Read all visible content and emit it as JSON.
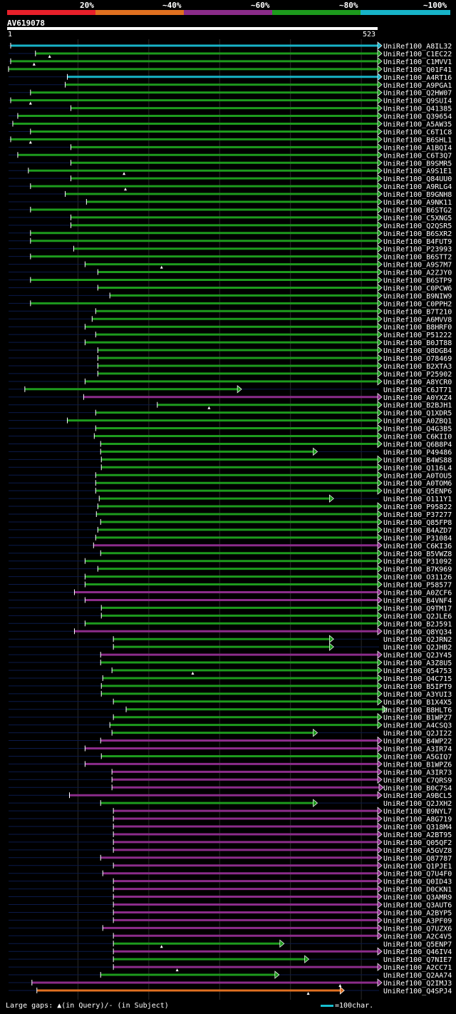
{
  "legend": {
    "labels": [
      "20%",
      "~40%",
      "~60%",
      "~80%",
      "~100%"
    ],
    "colors": [
      "#e8202a",
      "#e07020",
      "#8b2c8a",
      "#1d9a1d",
      "#17b3c8"
    ]
  },
  "query": {
    "id": "AV619078",
    "start": "1",
    "end": "523"
  },
  "footer": {
    "gaps_text": "Large gaps: ▲(in Query)/- (in Subject)",
    "scale_text": "=100char."
  },
  "hits": [
    {
      "label": "UniRef100_A8IL32",
      "color": "cyan",
      "s": 5,
      "e": 523,
      "len": 523,
      "tri": null
    },
    {
      "label": "UniRef100_C1EC22",
      "color": "green",
      "s": 40,
      "e": 523,
      "len": 523,
      "tri": 60
    },
    {
      "label": "UniRef100_C1MVV1",
      "color": "green",
      "s": 5,
      "e": 523,
      "len": 523,
      "tri": 38
    },
    {
      "label": "UniRef100_Q01F41",
      "color": "green",
      "s": 2,
      "e": 523,
      "len": 523,
      "tri": null
    },
    {
      "label": "UniRef100_A4RT16",
      "color": "cyan",
      "s": 85,
      "e": 523,
      "len": 523,
      "tri": null
    },
    {
      "label": "UniRef100_A9PGA1",
      "color": "green",
      "s": 82,
      "e": 523,
      "len": 530,
      "tri": null
    },
    {
      "label": "UniRef100_Q2HW07",
      "color": "green",
      "s": 33,
      "e": 523,
      "len": 530,
      "tri": null
    },
    {
      "label": "UniRef100_Q9SUI4",
      "color": "green",
      "s": 5,
      "e": 523,
      "len": 530,
      "tri": 33
    },
    {
      "label": "UniRef100_Q41385",
      "color": "green",
      "s": 90,
      "e": 523,
      "len": 530,
      "tri": null
    },
    {
      "label": "UniRef100_Q39654",
      "color": "green",
      "s": 15,
      "e": 523,
      "len": 530,
      "tri": null
    },
    {
      "label": "UniRef100_A5AW35",
      "color": "green",
      "s": 8,
      "e": 523,
      "len": 530,
      "tri": null
    },
    {
      "label": "UniRef100_C6T1C8",
      "color": "green",
      "s": 33,
      "e": 523,
      "len": 530,
      "tri": null
    },
    {
      "label": "UniRef100_B6SHL1",
      "color": "green",
      "s": 5,
      "e": 523,
      "len": 523,
      "tri": 33
    },
    {
      "label": "UniRef100_A1BQI4",
      "color": "green",
      "s": 90,
      "e": 523,
      "len": 530,
      "tri": null
    },
    {
      "label": "UniRef100_C6T3Q7",
      "color": "green",
      "s": 15,
      "e": 523,
      "len": 530,
      "tri": null
    },
    {
      "label": "UniRef100_B9SMR5",
      "color": "green",
      "s": 90,
      "e": 523,
      "len": 530,
      "tri": null
    },
    {
      "label": "UniRef100_A9S1E1",
      "color": "green",
      "s": 30,
      "e": 523,
      "len": 530,
      "tri": 165
    },
    {
      "label": "UniRef100_Q84UU0",
      "color": "green",
      "s": 90,
      "e": 523,
      "len": 530,
      "tri": null
    },
    {
      "label": "UniRef100_A9RLG4",
      "color": "green",
      "s": 33,
      "e": 523,
      "len": 530,
      "tri": 167
    },
    {
      "label": "UniRef100_B9GNH8",
      "color": "green",
      "s": 82,
      "e": 523,
      "len": 530,
      "tri": null
    },
    {
      "label": "UniRef100_A9NK11",
      "color": "green",
      "s": 112,
      "e": 523,
      "len": 530,
      "tri": null
    },
    {
      "label": "UniRef100_B6STG2",
      "color": "green",
      "s": 33,
      "e": 523,
      "len": 530,
      "tri": null
    },
    {
      "label": "UniRef100_C5XNG5",
      "color": "green",
      "s": 90,
      "e": 523,
      "len": 530,
      "tri": null
    },
    {
      "label": "UniRef100_Q2QSR5",
      "color": "green",
      "s": 90,
      "e": 523,
      "len": 530,
      "tri": null
    },
    {
      "label": "UniRef100_B6SXR2",
      "color": "green",
      "s": 33,
      "e": 523,
      "len": 530,
      "tri": null
    },
    {
      "label": "UniRef100_B4FUT9",
      "color": "green",
      "s": 33,
      "e": 523,
      "len": 530,
      "tri": null
    },
    {
      "label": "UniRef100_P23993",
      "color": "green",
      "s": 94,
      "e": 523,
      "len": 530,
      "tri": null
    },
    {
      "label": "UniRef100_B6STT2",
      "color": "green",
      "s": 33,
      "e": 523,
      "len": 530,
      "tri": null
    },
    {
      "label": "UniRef100_A9S7M7",
      "color": "green",
      "s": 110,
      "e": 523,
      "len": 530,
      "tri": 218
    },
    {
      "label": "UniRef100_A2ZJY0",
      "color": "green",
      "s": 128,
      "e": 523,
      "len": 530,
      "tri": null
    },
    {
      "label": "UniRef100_B6STP9",
      "color": "green",
      "s": 33,
      "e": 523,
      "len": 530,
      "tri": null
    },
    {
      "label": "UniRef100_C0PCW6",
      "color": "green",
      "s": 128,
      "e": 523,
      "len": 530,
      "tri": null
    },
    {
      "label": "UniRef100_B9NIW9",
      "color": "green",
      "s": 145,
      "e": 523,
      "len": 530,
      "tri": null
    },
    {
      "label": "UniRef100_C0PPH2",
      "color": "green",
      "s": 33,
      "e": 523,
      "len": 530,
      "tri": null
    },
    {
      "label": "UniRef100_B7T210",
      "color": "green",
      "s": 125,
      "e": 523,
      "len": 523,
      "tri": null
    },
    {
      "label": "UniRef100_A6MVV8",
      "color": "green",
      "s": 120,
      "e": 523,
      "len": 523,
      "tri": null
    },
    {
      "label": "UniRef100_B8HRF0",
      "color": "green",
      "s": 110,
      "e": 523,
      "len": 523,
      "tri": null
    },
    {
      "label": "UniRef100_P51222",
      "color": "green",
      "s": 125,
      "e": 523,
      "len": 523,
      "tri": null
    },
    {
      "label": "UniRef100_B0JT88",
      "color": "green",
      "s": 110,
      "e": 523,
      "len": 523,
      "tri": null
    },
    {
      "label": "UniRef100_Q8DGB4",
      "color": "green",
      "s": 128,
      "e": 523,
      "len": 523,
      "tri": null
    },
    {
      "label": "UniRef100_O78469",
      "color": "green",
      "s": 128,
      "e": 523,
      "len": 523,
      "tri": null
    },
    {
      "label": "UniRef100_B2XTA3",
      "color": "green",
      "s": 128,
      "e": 523,
      "len": 523,
      "tri": null
    },
    {
      "label": "UniRef100_P25902",
      "color": "green",
      "s": 128,
      "e": 523,
      "len": 523,
      "tri": null
    },
    {
      "label": "UniRef100_A8YCR0",
      "color": "green",
      "s": 110,
      "e": 523,
      "len": 523,
      "tri": null
    },
    {
      "label": "UniRef100_C6JT71",
      "color": "green",
      "s": 25,
      "e": 325,
      "len": 523,
      "tri": null
    },
    {
      "label": "UniRef100_A0YXZ4",
      "color": "purple",
      "s": 108,
      "e": 523,
      "len": 523,
      "tri": null
    },
    {
      "label": "UniRef100_B2BJH1",
      "color": "green",
      "s": 212,
      "e": 523,
      "len": 523,
      "tri": 285
    },
    {
      "label": "UniRef100_Q1XDR5",
      "color": "green",
      "s": 125,
      "e": 523,
      "len": 523,
      "tri": null
    },
    {
      "label": "UniRef100_A0ZBQ1",
      "color": "green",
      "s": 85,
      "e": 523,
      "len": 523,
      "tri": null
    },
    {
      "label": "UniRef100_Q4G3B5",
      "color": "green",
      "s": 125,
      "e": 523,
      "len": 523,
      "tri": null
    },
    {
      "label": "UniRef100_C6KII0",
      "color": "green",
      "s": 123,
      "e": 523,
      "len": 523,
      "tri": null
    },
    {
      "label": "UniRef100_Q6B8P4",
      "color": "green",
      "s": 132,
      "e": 523,
      "len": 523,
      "tri": null
    },
    {
      "label": "UniRef100_P49486",
      "color": "green",
      "s": 132,
      "e": 432,
      "len": 523,
      "tri": null
    },
    {
      "label": "UniRef100_B4WS88",
      "color": "green",
      "s": 133,
      "e": 523,
      "len": 523,
      "tri": null
    },
    {
      "label": "UniRef100_Q116L4",
      "color": "green",
      "s": 133,
      "e": 523,
      "len": 523,
      "tri": null
    },
    {
      "label": "UniRef100_A0TOU5",
      "color": "green",
      "s": 125,
      "e": 523,
      "len": 523,
      "tri": null
    },
    {
      "label": "UniRef100_A0TOM6",
      "color": "green",
      "s": 125,
      "e": 523,
      "len": 523,
      "tri": null
    },
    {
      "label": "UniRef100_Q5ENP6",
      "color": "green",
      "s": 125,
      "e": 523,
      "len": 523,
      "tri": null
    },
    {
      "label": "UniRef100_O111Y1",
      "color": "green",
      "s": 130,
      "e": 455,
      "len": 523,
      "tri": null
    },
    {
      "label": "UniRef100_P95822",
      "color": "green",
      "s": 128,
      "e": 523,
      "len": 523,
      "tri": null
    },
    {
      "label": "UniRef100_P37277",
      "color": "green",
      "s": 126,
      "e": 523,
      "len": 523,
      "tri": null
    },
    {
      "label": "UniRef100_Q85FP8",
      "color": "green",
      "s": 132,
      "e": 523,
      "len": 523,
      "tri": null
    },
    {
      "label": "UniRef100_B4AZD7",
      "color": "green",
      "s": 128,
      "e": 523,
      "len": 523,
      "tri": null
    },
    {
      "label": "UniRef100_P31084",
      "color": "green",
      "s": 125,
      "e": 523,
      "len": 523,
      "tri": null
    },
    {
      "label": "UniRef100_C6KI36",
      "color": "purple",
      "s": 122,
      "e": 523,
      "len": 523,
      "tri": null
    },
    {
      "label": "UniRef100_B5VWZ8",
      "color": "green",
      "s": 132,
      "e": 523,
      "len": 523,
      "tri": null
    },
    {
      "label": "UniRef100_P31092",
      "color": "green",
      "s": 110,
      "e": 523,
      "len": 523,
      "tri": null
    },
    {
      "label": "UniRef100_B7K969",
      "color": "green",
      "s": 128,
      "e": 523,
      "len": 523,
      "tri": null
    },
    {
      "label": "UniRef100_O31126",
      "color": "green",
      "s": 110,
      "e": 523,
      "len": 523,
      "tri": null
    },
    {
      "label": "UniRef100_P58577",
      "color": "green",
      "s": 110,
      "e": 523,
      "len": 523,
      "tri": null
    },
    {
      "label": "UniRef100_A0ZCF6",
      "color": "purple",
      "s": 95,
      "e": 523,
      "len": 523,
      "tri": null
    },
    {
      "label": "UniRef100_B4VNF4",
      "color": "purple",
      "s": 110,
      "e": 523,
      "len": 523,
      "tri": null
    },
    {
      "label": "UniRef100_Q9TM17",
      "color": "green",
      "s": 133,
      "e": 523,
      "len": 523,
      "tri": null
    },
    {
      "label": "UniRef100_Q2JLE6",
      "color": "green",
      "s": 133,
      "e": 523,
      "len": 523,
      "tri": null
    },
    {
      "label": "UniRef100_B2J591",
      "color": "green",
      "s": 110,
      "e": 523,
      "len": 523,
      "tri": null
    },
    {
      "label": "UniRef100_Q8YQ34",
      "color": "purple",
      "s": 95,
      "e": 523,
      "len": 523,
      "tri": null
    },
    {
      "label": "UniRef100_Q2JRN2",
      "color": "green",
      "s": 150,
      "e": 455,
      "len": 523,
      "tri": null
    },
    {
      "label": "UniRef100_Q2JHB2",
      "color": "green",
      "s": 150,
      "e": 455,
      "len": 523,
      "tri": null
    },
    {
      "label": "UniRef100_Q2JY45",
      "color": "purple",
      "s": 132,
      "e": 523,
      "len": 523,
      "tri": null
    },
    {
      "label": "UniRef100_A3Z8U5",
      "color": "green",
      "s": 132,
      "e": 523,
      "len": 523,
      "tri": null
    },
    {
      "label": "UniRef100_Q54753",
      "color": "green",
      "s": 148,
      "e": 523,
      "len": 523,
      "tri": 262
    },
    {
      "label": "UniRef100_Q4C715",
      "color": "green",
      "s": 135,
      "e": 523,
      "len": 523,
      "tri": null
    },
    {
      "label": "UniRef100_B5IPT9",
      "color": "green",
      "s": 133,
      "e": 523,
      "len": 523,
      "tri": null
    },
    {
      "label": "UniRef100_A3YUI3",
      "color": "green",
      "s": 133,
      "e": 523,
      "len": 523,
      "tri": null
    },
    {
      "label": "UniRef100_B1X4X5",
      "color": "green",
      "s": 150,
      "e": 523,
      "len": 523,
      "tri": null
    },
    {
      "label": "UniRef100_B8HLT6",
      "color": "green",
      "s": 168,
      "e": 530,
      "len": 530,
      "tri": null
    },
    {
      "label": "UniRef100_B1WPZ7",
      "color": "green",
      "s": 150,
      "e": 523,
      "len": 523,
      "tri": null
    },
    {
      "label": "UniRef100_A4CSQ3",
      "color": "green",
      "s": 145,
      "e": 523,
      "len": 523,
      "tri": null
    },
    {
      "label": "UniRef100_Q2JI22",
      "color": "green",
      "s": 148,
      "e": 432,
      "len": 523,
      "tri": null
    },
    {
      "label": "UniRef100_B4WP22",
      "color": "purple",
      "s": 132,
      "e": 523,
      "len": 523,
      "tri": null
    },
    {
      "label": "UniRef100_A3IR74",
      "color": "purple",
      "s": 110,
      "e": 523,
      "len": 523,
      "tri": null
    },
    {
      "label": "UniRef100_A5GIQ7",
      "color": "green",
      "s": 133,
      "e": 523,
      "len": 523,
      "tri": null
    },
    {
      "label": "UniRef100_B1WPZ6",
      "color": "purple",
      "s": 110,
      "e": 523,
      "len": 523,
      "tri": null
    },
    {
      "label": "UniRef100_A3IR73",
      "color": "purple",
      "s": 148,
      "e": 523,
      "len": 523,
      "tri": null
    },
    {
      "label": "UniRef100_C7QRS9",
      "color": "purple",
      "s": 148,
      "e": 523,
      "len": 523,
      "tri": null
    },
    {
      "label": "UniRef100_B0C7S4",
      "color": "purple",
      "s": 148,
      "e": 525,
      "len": 530,
      "tri": null
    },
    {
      "label": "UniRef100_A9BCL5",
      "color": "purple",
      "s": 88,
      "e": 523,
      "len": 523,
      "tri": null
    },
    {
      "label": "UniRef100_Q2JXH2",
      "color": "green",
      "s": 132,
      "e": 432,
      "len": 523,
      "tri": null
    },
    {
      "label": "UniRef100_B9NYL7",
      "color": "purple",
      "s": 150,
      "e": 523,
      "len": 523,
      "tri": null
    },
    {
      "label": "UniRef100_A8G719",
      "color": "purple",
      "s": 150,
      "e": 523,
      "len": 523,
      "tri": null
    },
    {
      "label": "UniRef100_Q318M4",
      "color": "purple",
      "s": 150,
      "e": 523,
      "len": 523,
      "tri": null
    },
    {
      "label": "UniRef100_A2BT95",
      "color": "purple",
      "s": 150,
      "e": 523,
      "len": 523,
      "tri": null
    },
    {
      "label": "UniRef100_Q05QF2",
      "color": "purple",
      "s": 150,
      "e": 523,
      "len": 523,
      "tri": null
    },
    {
      "label": "UniRef100_A5GVZ8",
      "color": "purple",
      "s": 150,
      "e": 523,
      "len": 523,
      "tri": null
    },
    {
      "label": "UniRef100_Q87787",
      "color": "purple",
      "s": 132,
      "e": 523,
      "len": 523,
      "tri": null
    },
    {
      "label": "UniRef100_Q1PJE1",
      "color": "purple",
      "s": 150,
      "e": 523,
      "len": 523,
      "tri": null
    },
    {
      "label": "UniRef100_Q7U4F0",
      "color": "purple",
      "s": 135,
      "e": 523,
      "len": 523,
      "tri": null
    },
    {
      "label": "UniRef100_Q0ID43",
      "color": "purple",
      "s": 150,
      "e": 523,
      "len": 523,
      "tri": null
    },
    {
      "label": "UniRef100_D0CKN1",
      "color": "purple",
      "s": 150,
      "e": 523,
      "len": 523,
      "tri": null
    },
    {
      "label": "UniRef100_Q3AMR9",
      "color": "purple",
      "s": 150,
      "e": 523,
      "len": 523,
      "tri": null
    },
    {
      "label": "UniRef100_Q3AUT6",
      "color": "purple",
      "s": 150,
      "e": 523,
      "len": 523,
      "tri": null
    },
    {
      "label": "UniRef100_A2BYP5",
      "color": "purple",
      "s": 150,
      "e": 523,
      "len": 523,
      "tri": null
    },
    {
      "label": "UniRef100_A3PF09",
      "color": "purple",
      "s": 150,
      "e": 523,
      "len": 523,
      "tri": null
    },
    {
      "label": "UniRef100_Q7UZX6",
      "color": "purple",
      "s": 135,
      "e": 523,
      "len": 523,
      "tri": null
    },
    {
      "label": "UniRef100_A2C4V5",
      "color": "purple",
      "s": 150,
      "e": 523,
      "len": 523,
      "tri": null
    },
    {
      "label": "UniRef100_Q5ENP7",
      "color": "green",
      "s": 150,
      "e": 385,
      "len": 523,
      "tri": 218
    },
    {
      "label": "UniRef100_Q46IV4",
      "color": "purple",
      "s": 150,
      "e": 523,
      "len": 523,
      "tri": null
    },
    {
      "label": "UniRef100_Q7NIE7",
      "color": "green",
      "s": 150,
      "e": 420,
      "len": 523,
      "tri": null
    },
    {
      "label": "UniRef100_A2CC71",
      "color": "purple",
      "s": 150,
      "e": 523,
      "len": 523,
      "tri": 240
    },
    {
      "label": "UniRef100_Q2AA74",
      "color": "green",
      "s": 132,
      "e": 378,
      "len": 523,
      "tri": null
    },
    {
      "label": "UniRef100_Q2IMJ3",
      "color": "purple",
      "s": 35,
      "e": 523,
      "len": 523,
      "tri": 470
    },
    {
      "label": "UniRef100_Q4SPJ4",
      "color": "orange",
      "s": 42,
      "e": 470,
      "len": 523,
      "tri": 425
    }
  ]
}
